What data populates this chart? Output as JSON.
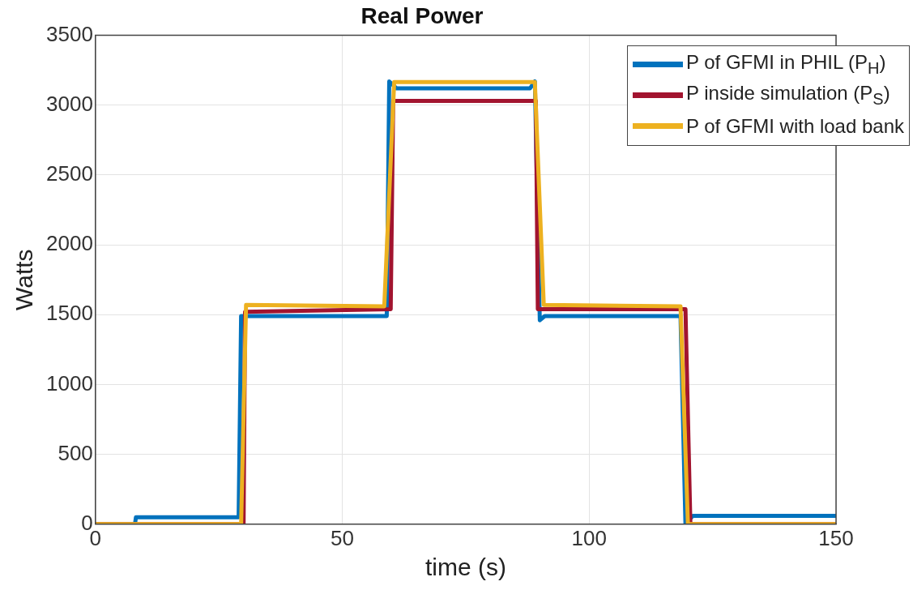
{
  "chart_data": {
    "type": "line",
    "title": "Real Power",
    "xlabel": "time (s)",
    "ylabel": "Watts",
    "xlim": [
      0,
      150
    ],
    "xticks": [
      0,
      50,
      100,
      150
    ],
    "ylim": [
      0,
      3500
    ],
    "yticks": [
      0,
      500,
      1000,
      1500,
      2000,
      2500,
      3000,
      3500
    ],
    "grid": true,
    "legend": "top right",
    "series": [
      {
        "name": "P of GFMI in PHIL (P$_{H}$)",
        "color": "#0072bd",
        "x": [
          0,
          8,
          8.2,
          29,
          29.5,
          59,
          59.5,
          61,
          88,
          89,
          90,
          91,
          118.5,
          119.5,
          121,
          150
        ],
        "values": [
          0,
          0,
          50,
          50,
          1490,
          1490,
          3170,
          3120,
          3120,
          3170,
          1460,
          1490,
          1490,
          0,
          60,
          60
        ]
      },
      {
        "name": "P inside simulation (P$_{S}$)",
        "color": "#a2142f",
        "x": [
          0,
          30,
          30.3,
          59.8,
          60.3,
          89.2,
          89.6,
          119.5,
          120.5,
          150
        ],
        "values": [
          0,
          0,
          1520,
          1540,
          3030,
          3030,
          1540,
          1540,
          0,
          0
        ]
      },
      {
        "name": "P of GFMI with load bank",
        "color": "#edb120",
        "x": [
          0,
          29.5,
          30.5,
          58.5,
          60.5,
          89,
          90.8,
          118.5,
          120,
          150
        ],
        "values": [
          0,
          0,
          1570,
          1560,
          3165,
          3165,
          1570,
          1560,
          0,
          0
        ]
      }
    ]
  }
}
